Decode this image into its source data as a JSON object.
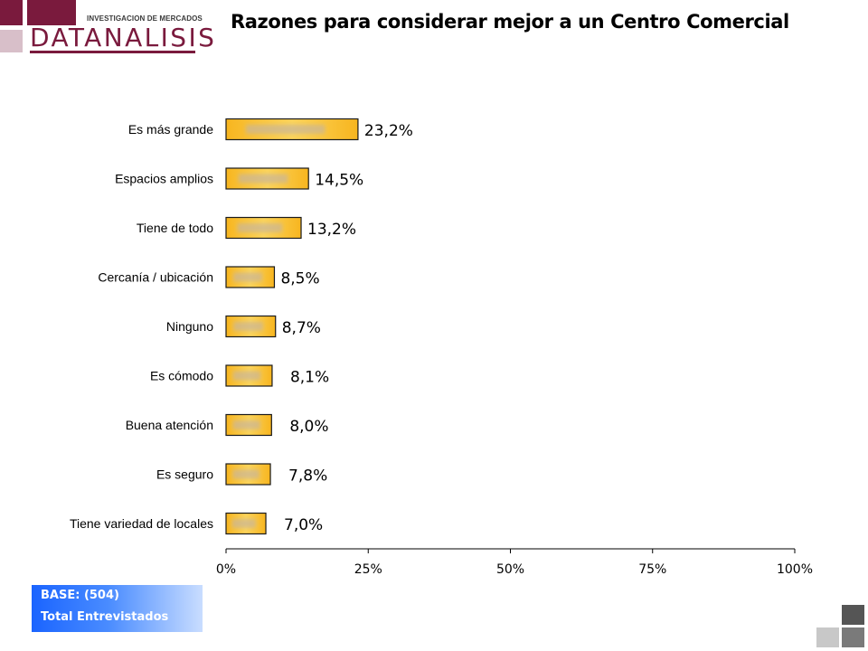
{
  "header": {
    "logo_tagline": "INVESTIGACION DE MERCADOS",
    "logo_word": "DATANALISIS",
    "title": "Razones para considerar mejor a un Centro Comercial"
  },
  "colors": {
    "brand": "#7a1a3d",
    "bar_fill": "#f9c230",
    "bar_outline": "#1a1a1a",
    "base_box": "#2f78ff"
  },
  "chart_data": {
    "type": "bar",
    "orientation": "horizontal",
    "title": "Razones para considerar mejor a un Centro Comercial",
    "categories": [
      "Es más grande",
      "Espacios amplios",
      "Tiene de todo",
      "Cercanía / ubicación",
      "Ninguno",
      "Es cómodo",
      "Buena atención",
      "Es seguro",
      "Tiene variedad de locales"
    ],
    "values": [
      23.2,
      14.5,
      13.2,
      8.5,
      8.7,
      8.1,
      8.0,
      7.8,
      7.0
    ],
    "value_labels": [
      "23,2%",
      "14,5%",
      "13,2%",
      "8,5%",
      "8,7%",
      "8,1%",
      "8,0%",
      "7,8%",
      "7,0%"
    ],
    "xlim": [
      0,
      100
    ],
    "x_ticks": [
      0,
      25,
      50,
      75,
      100
    ],
    "x_tick_labels": [
      "0%",
      "25%",
      "50%",
      "75%",
      "100%"
    ],
    "grid": false,
    "legend": "none"
  },
  "base_note": {
    "line1": "BASE:  (504)",
    "line2": "Total Entrevistados"
  }
}
